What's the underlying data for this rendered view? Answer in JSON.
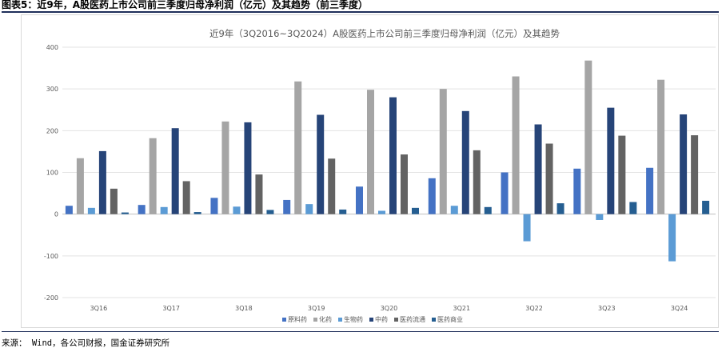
{
  "header": {
    "title": "图表5：近9年，A股医药上市公司前三季度归母净利润（亿元）及其趋势（前三季度）"
  },
  "source": "来源： Wind，各公司财报，国金证券研究所",
  "chart_data": {
    "type": "bar",
    "title": "近9年（3Q2016~3Q2024）A股医药上市公司前三季度归母净利润（亿元）及其趋势",
    "categories": [
      "3Q16",
      "3Q17",
      "3Q18",
      "3Q19",
      "3Q20",
      "3Q21",
      "3Q22",
      "3Q23",
      "3Q24"
    ],
    "ylim": [
      -200,
      400
    ],
    "yticks": [
      -200,
      -100,
      0,
      100,
      200,
      300,
      400
    ],
    "grid": true,
    "legend_position": "bottom",
    "series": [
      {
        "name": "原料药",
        "color": "#4472c4",
        "values": [
          20,
          22,
          39,
          34,
          66,
          86,
          100,
          109,
          111
        ]
      },
      {
        "name": "化药",
        "color": "#a5a5a5",
        "values": [
          134,
          182,
          222,
          318,
          298,
          300,
          330,
          368,
          322
        ]
      },
      {
        "name": "生物药",
        "color": "#5b9bd5",
        "values": [
          15,
          17,
          18,
          24,
          8,
          20,
          -65,
          -14,
          -113
        ]
      },
      {
        "name": "中药",
        "color": "#264478",
        "values": [
          151,
          206,
          220,
          238,
          280,
          247,
          215,
          255,
          239
        ]
      },
      {
        "name": "医药流通",
        "color": "#636363",
        "values": [
          61,
          79,
          95,
          133,
          143,
          153,
          169,
          188,
          189
        ]
      },
      {
        "name": "医药商业",
        "color": "#255e91",
        "values": [
          4,
          5,
          10,
          11,
          15,
          17,
          26,
          29,
          32
        ]
      }
    ]
  }
}
